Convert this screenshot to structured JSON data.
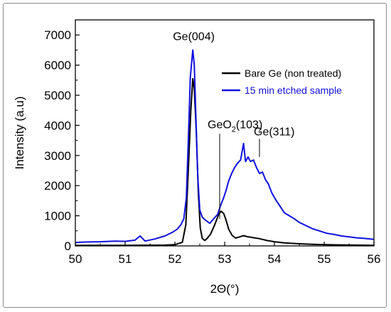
{
  "chart_data": {
    "type": "line",
    "title": "",
    "xlabel": "2Θ(°)",
    "ylabel": "Intensity (a.u)",
    "xlim": [
      50,
      56
    ],
    "ylim": [
      0,
      7500
    ],
    "x_ticks": [
      "50",
      "51",
      "52",
      "53",
      "54",
      "55",
      "56"
    ],
    "y_ticks": [
      "0",
      "1000",
      "2000",
      "3000",
      "4000",
      "5000",
      "6000",
      "7000"
    ],
    "grid": false,
    "legend_position": "top-right",
    "series": [
      {
        "name": "Bare Ge (non treated)",
        "color": "#000000",
        "points": [
          [
            50.0,
            20
          ],
          [
            51.0,
            20
          ],
          [
            51.8,
            25
          ],
          [
            52.0,
            40
          ],
          [
            52.15,
            120
          ],
          [
            52.22,
            700
          ],
          [
            52.27,
            2500
          ],
          [
            52.32,
            4500
          ],
          [
            52.36,
            5550
          ],
          [
            52.39,
            5200
          ],
          [
            52.43,
            3800
          ],
          [
            52.47,
            1800
          ],
          [
            52.51,
            600
          ],
          [
            52.55,
            250
          ],
          [
            52.6,
            180
          ],
          [
            52.65,
            250
          ],
          [
            52.72,
            400
          ],
          [
            52.8,
            700
          ],
          [
            52.88,
            1050
          ],
          [
            52.93,
            1150
          ],
          [
            52.98,
            1080
          ],
          [
            53.03,
            850
          ],
          [
            53.08,
            560
          ],
          [
            53.15,
            350
          ],
          [
            53.22,
            260
          ],
          [
            53.3,
            300
          ],
          [
            53.38,
            340
          ],
          [
            53.45,
            310
          ],
          [
            53.55,
            280
          ],
          [
            53.7,
            240
          ],
          [
            53.85,
            180
          ],
          [
            54.0,
            140
          ],
          [
            54.2,
            100
          ],
          [
            54.5,
            70
          ],
          [
            54.8,
            50
          ],
          [
            55.2,
            35
          ],
          [
            56.0,
            20
          ]
        ]
      },
      {
        "name": "15 min etched sample",
        "color": "#1010e0",
        "points": [
          [
            50.0,
            110
          ],
          [
            50.2,
            130
          ],
          [
            50.5,
            140
          ],
          [
            50.8,
            160
          ],
          [
            51.0,
            150
          ],
          [
            51.2,
            190
          ],
          [
            51.3,
            330
          ],
          [
            51.4,
            160
          ],
          [
            51.6,
            230
          ],
          [
            51.8,
            330
          ],
          [
            51.95,
            450
          ],
          [
            52.05,
            560
          ],
          [
            52.12,
            700
          ],
          [
            52.18,
            900
          ],
          [
            52.23,
            1600
          ],
          [
            52.27,
            3500
          ],
          [
            52.31,
            5600
          ],
          [
            52.36,
            6500
          ],
          [
            52.39,
            6000
          ],
          [
            52.42,
            4400
          ],
          [
            52.46,
            2300
          ],
          [
            52.5,
            1200
          ],
          [
            52.55,
            950
          ],
          [
            52.62,
            850
          ],
          [
            52.7,
            750
          ],
          [
            52.78,
            900
          ],
          [
            52.86,
            1050
          ],
          [
            52.92,
            1350
          ],
          [
            52.98,
            1600
          ],
          [
            53.03,
            1850
          ],
          [
            53.08,
            2150
          ],
          [
            53.14,
            2400
          ],
          [
            53.2,
            2600
          ],
          [
            53.26,
            2750
          ],
          [
            53.32,
            2850
          ],
          [
            53.38,
            3400
          ],
          [
            53.42,
            2800
          ],
          [
            53.47,
            2950
          ],
          [
            53.52,
            2800
          ],
          [
            53.58,
            2850
          ],
          [
            53.64,
            2600
          ],
          [
            53.7,
            2400
          ],
          [
            53.76,
            2450
          ],
          [
            53.82,
            2200
          ],
          [
            53.88,
            2050
          ],
          [
            53.95,
            1750
          ],
          [
            54.02,
            1550
          ],
          [
            54.1,
            1350
          ],
          [
            54.2,
            1100
          ],
          [
            54.3,
            1000
          ],
          [
            54.4,
            900
          ],
          [
            54.5,
            780
          ],
          [
            54.6,
            700
          ],
          [
            54.75,
            580
          ],
          [
            54.9,
            500
          ],
          [
            55.05,
            420
          ],
          [
            55.2,
            380
          ],
          [
            55.35,
            330
          ],
          [
            55.5,
            300
          ],
          [
            55.65,
            270
          ],
          [
            55.8,
            250
          ],
          [
            56.0,
            220
          ]
        ]
      }
    ],
    "annotations": [
      {
        "text": "Ge(004)",
        "x": 52.38,
        "y": 6500
      },
      {
        "text": "GeO",
        "sub": "2",
        "tail": "(103)",
        "x": 52.9,
        "y": 4050
      },
      {
        "text": "Ge(311)",
        "x": 53.7,
        "y": 3600
      }
    ]
  }
}
